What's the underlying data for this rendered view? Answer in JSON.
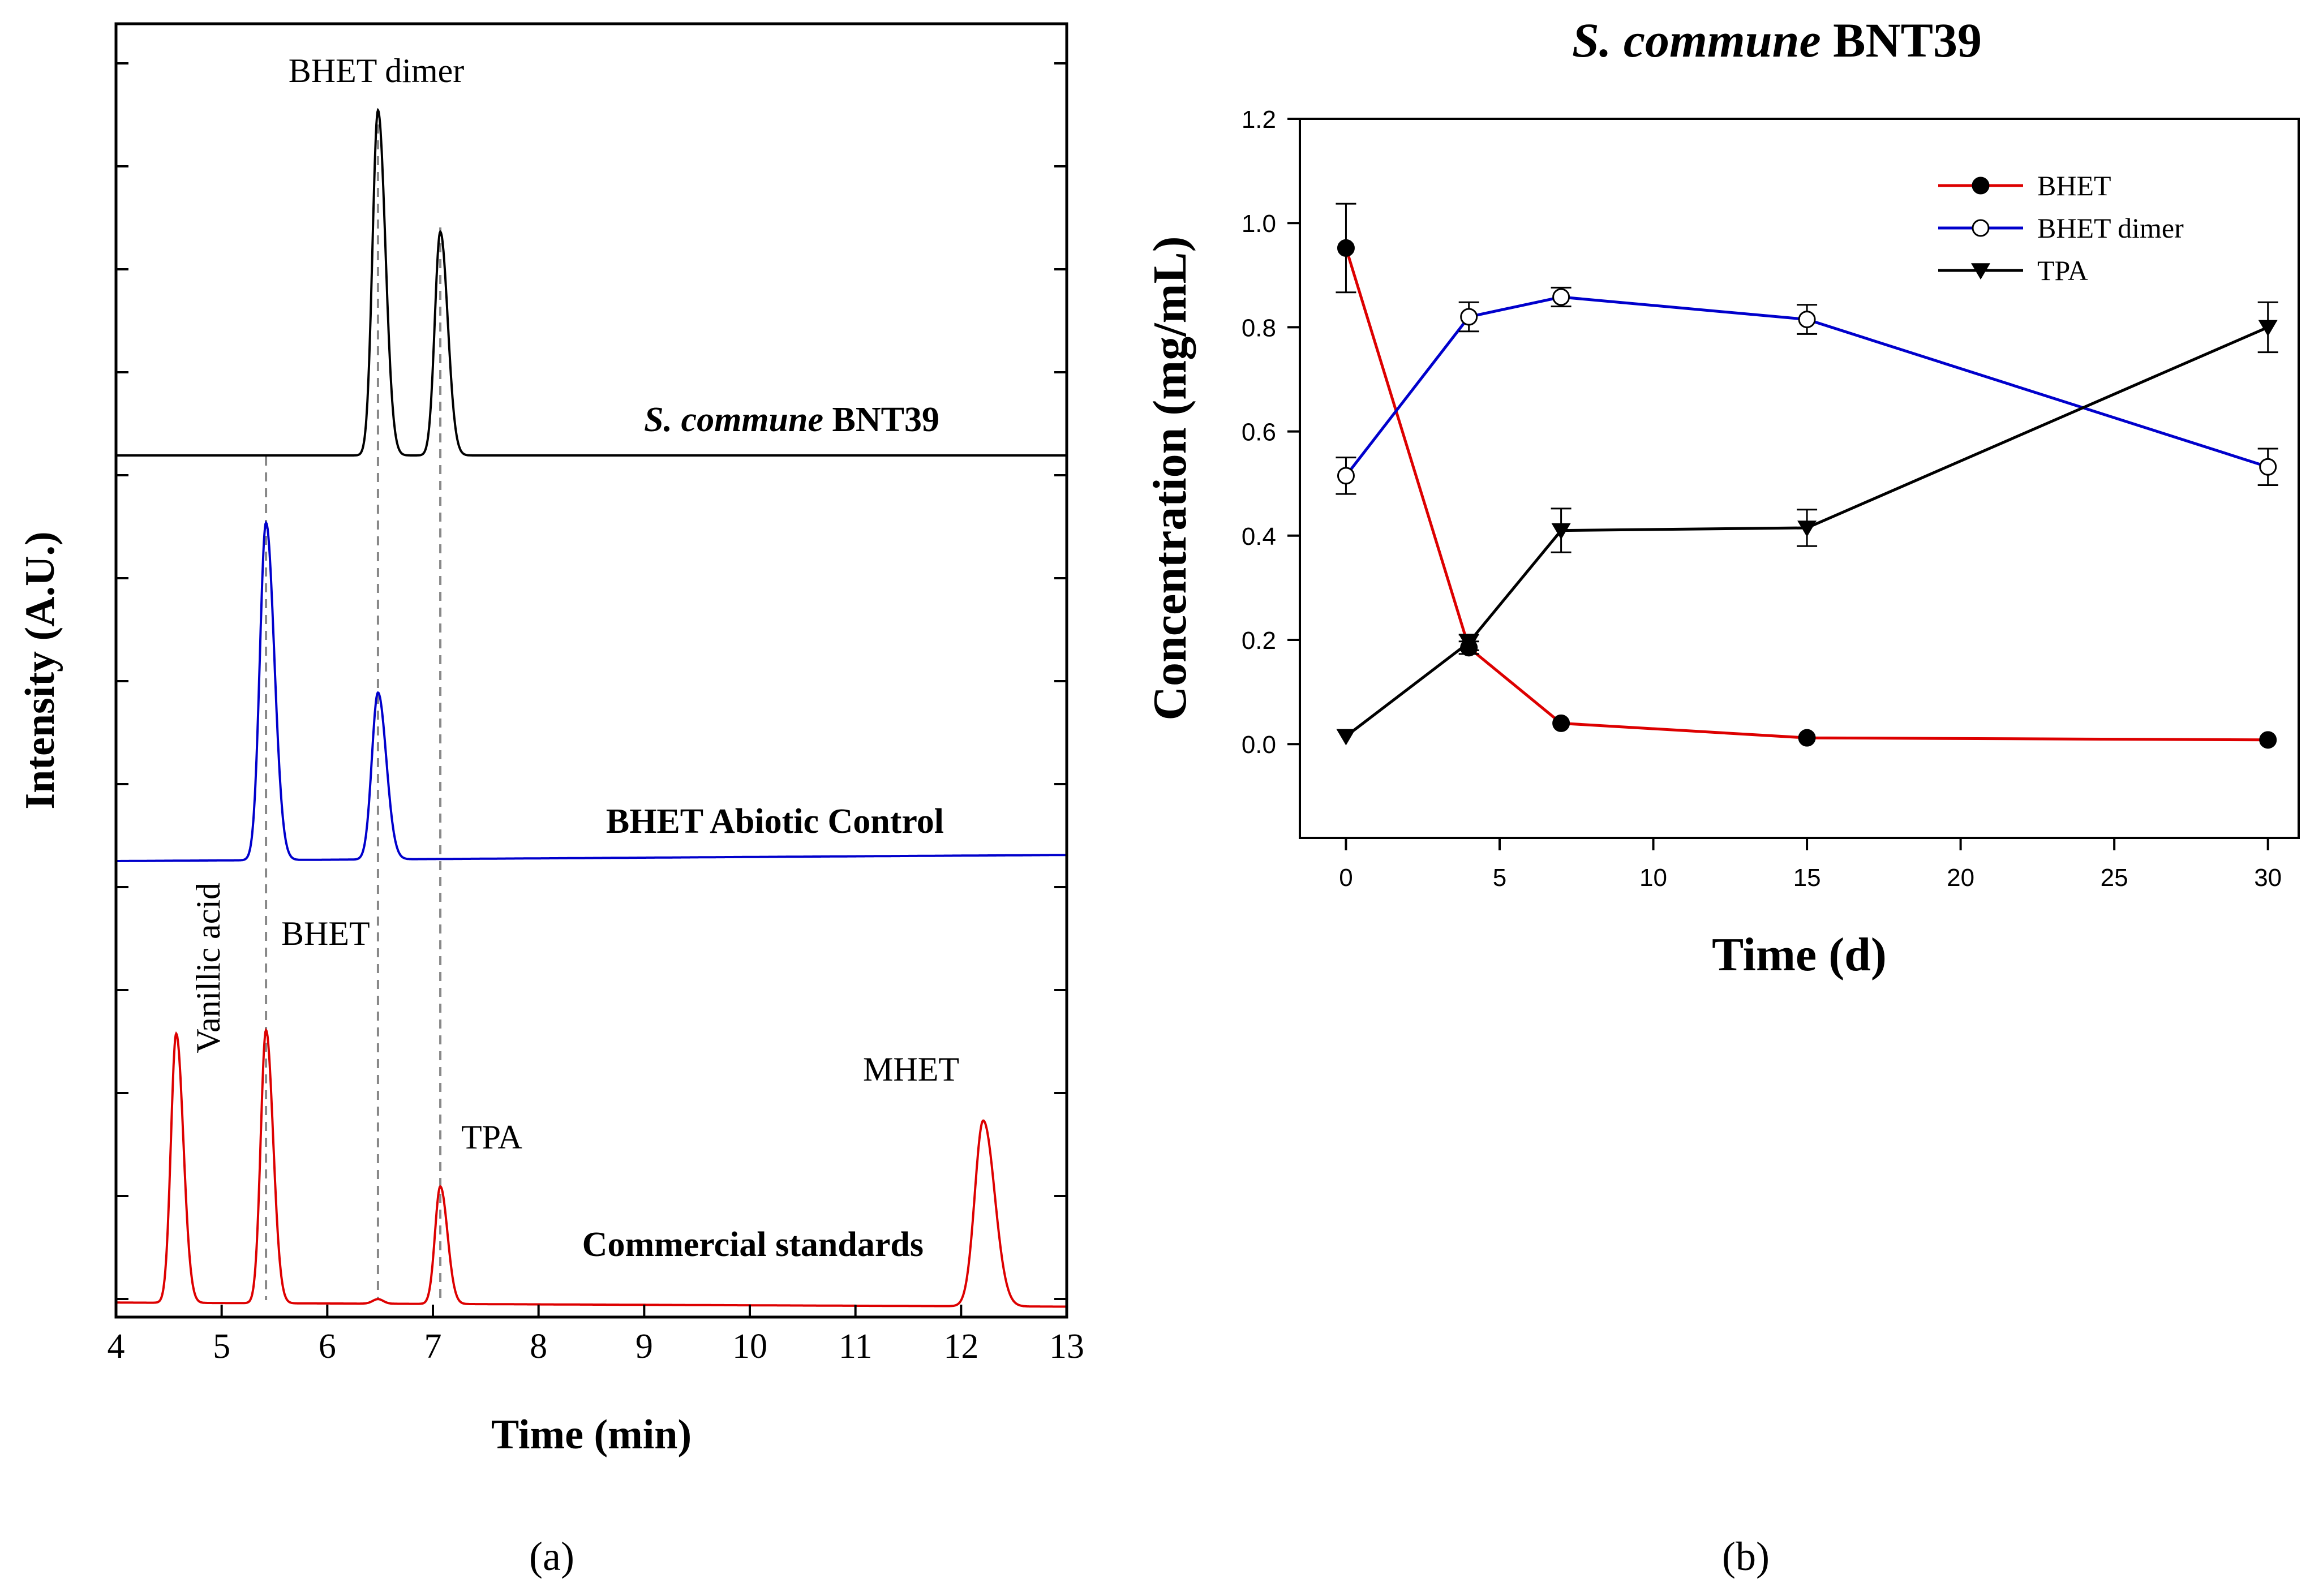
{
  "chart_data": [
    {
      "type": "line",
      "panel_label": "(a)",
      "xlabel": "Time (min)",
      "ylabel": "Intensity (A.U.)",
      "xlim": [
        4,
        13
      ],
      "x_ticks": [
        4,
        5,
        6,
        7,
        8,
        9,
        10,
        11,
        12,
        13
      ],
      "grid": false,
      "reference_lines_x": [
        5.42,
        6.48,
        7.07
      ],
      "series": [
        {
          "name": "S. commune BNT39",
          "name_italic": "S. commune",
          "name_rest": " BNT39",
          "color": "#000000",
          "peaks": [
            {
              "label": "BHET dimer",
              "x": 6.48,
              "height": 0.91
            },
            {
              "label": "",
              "x": 7.07,
              "height": 0.59
            }
          ]
        },
        {
          "name": "BHET Abiotic Control",
          "color": "#0000cc",
          "peaks": [
            {
              "label": "",
              "x": 5.42,
              "height": 0.89
            },
            {
              "label": "",
              "x": 6.48,
              "height": 0.44
            }
          ]
        },
        {
          "name": "Commercial standards",
          "color": "#dd0000",
          "peaks": [
            {
              "label": "Vanillic acid",
              "x": 4.57,
              "height": 0.71
            },
            {
              "label": "BHET",
              "x": 5.42,
              "height": 0.72
            },
            {
              "label": "TPA",
              "x": 7.07,
              "height": 0.31
            },
            {
              "label": "MHET",
              "x": 12.21,
              "height": 0.49
            }
          ]
        }
      ]
    },
    {
      "type": "line",
      "panel_label": "(b)",
      "title_italic": "S. commune",
      "title_rest": " BNT39",
      "xlabel": "Time (d)",
      "ylabel": "Concentration (mg/mL)",
      "xlim": [
        -1.5,
        31
      ],
      "ylim": [
        -0.18,
        1.2
      ],
      "x_ticks": [
        0,
        5,
        10,
        15,
        20,
        25,
        30
      ],
      "y_ticks": [
        "0.0",
        "0.2",
        "0.4",
        "0.6",
        "0.8",
        "1.0",
        "1.2"
      ],
      "grid": false,
      "legend_position": "top-right",
      "x": [
        0,
        4,
        7,
        15,
        30
      ],
      "series": [
        {
          "name": "BHET",
          "color": "#dd0000",
          "marker": "filled-circle",
          "values": [
            0.952,
            0.185,
            0.04,
            0.012,
            0.008
          ],
          "errors": [
            0.085,
            0.012,
            0.0,
            0.0,
            0.0
          ]
        },
        {
          "name": "BHET dimer",
          "color": "#0000cc",
          "marker": "open-circle",
          "values": [
            0.515,
            0.82,
            0.858,
            0.815,
            0.532
          ],
          "errors": [
            0.035,
            0.028,
            0.018,
            0.028,
            0.035
          ]
        },
        {
          "name": "TPA",
          "color": "#000000",
          "marker": "filled-triangle-down",
          "values": [
            0.015,
            0.195,
            0.41,
            0.415,
            0.8
          ],
          "errors": [
            0.0,
            0.015,
            0.042,
            0.035,
            0.048
          ]
        }
      ]
    }
  ]
}
